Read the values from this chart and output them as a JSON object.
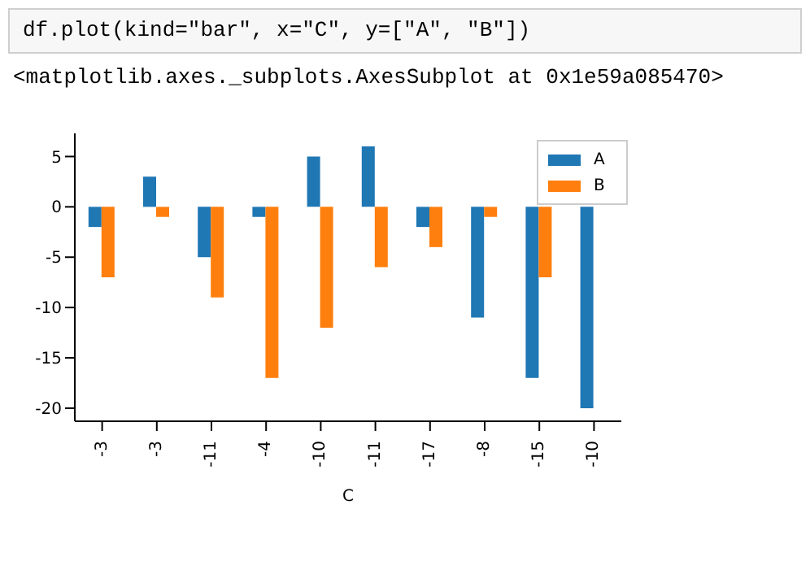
{
  "chart_data": {
    "type": "bar",
    "annotations": [
      "df.plot(kind=\"bar\", x=\"C\", y=[\"A\", \"B\"])",
      "<matplotlib.axes._subplots.AxesSubplot at 0x1e59a085470>"
    ],
    "xlabel": "C",
    "categories": [
      "-3",
      "-3",
      "-11",
      "-4",
      "-10",
      "-11",
      "-17",
      "-8",
      "-15",
      "-10"
    ],
    "series": [
      {
        "name": "A",
        "color": "#1f77b4",
        "values": [
          -2,
          3,
          -5,
          -1,
          5,
          6,
          -2,
          -11,
          -17,
          -20
        ]
      },
      {
        "name": "B",
        "color": "#ff7f0e",
        "values": [
          -7,
          -1,
          -9,
          -17,
          -12,
          -6,
          -4,
          -1,
          -7,
          0
        ]
      }
    ],
    "ylim": [
      -21.3,
      7.3
    ],
    "yticks": [
      -20,
      -15,
      -10,
      -5,
      0,
      5
    ],
    "grid": false,
    "legend": "top right"
  }
}
